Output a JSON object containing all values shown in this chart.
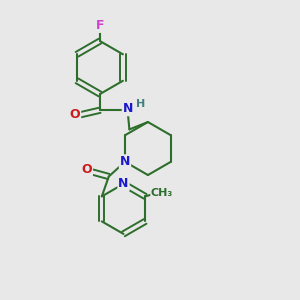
{
  "bg_color": "#e8e8e8",
  "bond_color": "#2d6e2d",
  "atom_colors": {
    "N": "#1a1acc",
    "O": "#cc1a1a",
    "F": "#cc44cc",
    "H": "#408080"
  },
  "figsize": [
    3.0,
    3.0
  ],
  "dpi": 100
}
